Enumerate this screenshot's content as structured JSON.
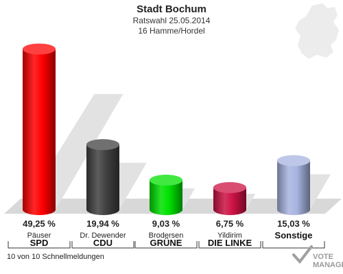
{
  "chart_data": {
    "type": "bar",
    "title": "Stadt Bochum",
    "subtitle_line1": "Ratswahl 25.05.2014",
    "subtitle_line2": "16 Hamme/Hordel",
    "categories": [
      "SPD",
      "CDU",
      "GRÜNE",
      "DIE LINKE",
      "Sonstige"
    ],
    "candidates": [
      "Päuser",
      "Dr. Dewender",
      "Brodersen",
      "Yildirim",
      ""
    ],
    "values": [
      49.25,
      19.94,
      9.03,
      6.75,
      15.03
    ],
    "value_labels": [
      "49,25 %",
      "19,94 %",
      "9,03 %",
      "6,75 %",
      "15,03 %"
    ],
    "colors": [
      "#ff0000",
      "#404040",
      "#00e000",
      "#cc1144",
      "#a8b4e0"
    ],
    "ylim": [
      0,
      50
    ],
    "grid": false
  },
  "footer": {
    "status": "10 von 10 Schnellmeldungen",
    "logo_line1": "VOTE",
    "logo_line2": "MANAGER"
  }
}
